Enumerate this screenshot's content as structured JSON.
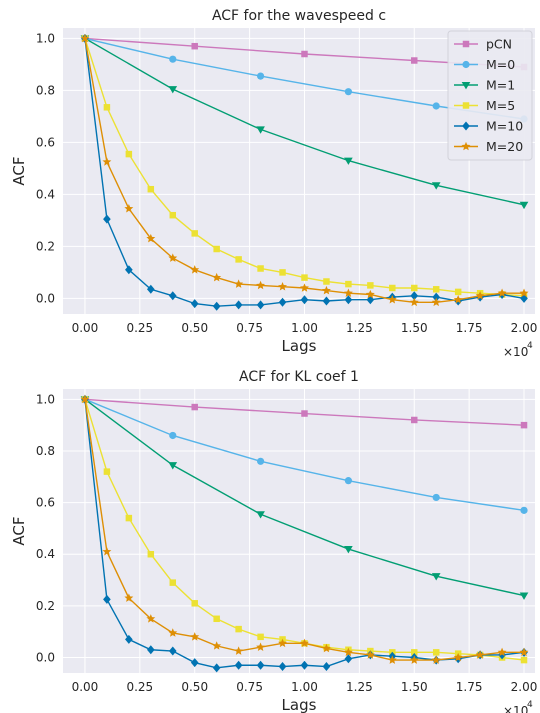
{
  "chart_data": [
    {
      "type": "line",
      "title": "ACF for the wavespeed c",
      "xlabel": "Lags",
      "ylabel": "ACF",
      "x_multiplier_label": "×10",
      "x_multiplier_exp": "4",
      "xlim": [
        -0.1,
        2.05
      ],
      "ylim": [
        -0.06,
        1.04
      ],
      "xticks": [
        0.0,
        0.25,
        0.5,
        0.75,
        1.0,
        1.25,
        1.5,
        1.75,
        2.0
      ],
      "xtick_labels": [
        "0.00",
        "0.25",
        "0.50",
        "0.75",
        "1.00",
        "1.25",
        "1.50",
        "1.75",
        "2.00"
      ],
      "yticks": [
        0.0,
        0.2,
        0.4,
        0.6,
        0.8,
        1.0
      ],
      "ytick_labels": [
        "0.0",
        "0.2",
        "0.4",
        "0.6",
        "0.8",
        "1.0"
      ],
      "grid": true,
      "legend_position": "top-right",
      "series": [
        {
          "name": "pCN",
          "color": "#cc78bc",
          "marker": "square",
          "x": [
            0,
            0.5,
            1.0,
            1.5,
            2.0
          ],
          "y": [
            1.0,
            0.97,
            0.94,
            0.915,
            0.89
          ]
        },
        {
          "name": "M=0",
          "color": "#56b4e9",
          "marker": "circle",
          "x": [
            0,
            0.4,
            0.8,
            1.2,
            1.6,
            2.0
          ],
          "y": [
            1.0,
            0.92,
            0.855,
            0.795,
            0.74,
            0.69
          ]
        },
        {
          "name": "M=1",
          "color": "#029e73",
          "marker": "triangle-down",
          "x": [
            0,
            0.4,
            0.8,
            1.2,
            1.6,
            2.0
          ],
          "y": [
            1.0,
            0.805,
            0.65,
            0.53,
            0.435,
            0.36
          ]
        },
        {
          "name": "M=5",
          "color": "#ece133",
          "marker": "square",
          "x": [
            0,
            0.1,
            0.2,
            0.3,
            0.4,
            0.5,
            0.6,
            0.7,
            0.8,
            0.9,
            1.0,
            1.1,
            1.2,
            1.3,
            1.4,
            1.5,
            1.6,
            1.7,
            1.8,
            1.9,
            2.0
          ],
          "y": [
            1.0,
            0.735,
            0.555,
            0.42,
            0.32,
            0.25,
            0.19,
            0.15,
            0.115,
            0.1,
            0.08,
            0.065,
            0.055,
            0.05,
            0.04,
            0.04,
            0.035,
            0.025,
            0.02,
            0.015,
            0.01
          ]
        },
        {
          "name": "M=10",
          "color": "#0173b2",
          "marker": "diamond",
          "x": [
            0,
            0.1,
            0.2,
            0.3,
            0.4,
            0.5,
            0.6,
            0.7,
            0.8,
            0.9,
            1.0,
            1.1,
            1.2,
            1.3,
            1.4,
            1.5,
            1.6,
            1.7,
            1.8,
            1.9,
            2.0
          ],
          "y": [
            1.0,
            0.305,
            0.11,
            0.035,
            0.01,
            -0.02,
            -0.03,
            -0.025,
            -0.025,
            -0.015,
            -0.005,
            -0.01,
            -0.005,
            -0.005,
            0.005,
            0.01,
            0.005,
            -0.01,
            0.005,
            0.015,
            0.0
          ]
        },
        {
          "name": "M=20",
          "color": "#de8f05",
          "marker": "star",
          "x": [
            0,
            0.1,
            0.2,
            0.3,
            0.4,
            0.5,
            0.6,
            0.7,
            0.8,
            0.9,
            1.0,
            1.1,
            1.2,
            1.3,
            1.4,
            1.5,
            1.6,
            1.7,
            1.8,
            1.9,
            2.0
          ],
          "y": [
            1.0,
            0.525,
            0.345,
            0.23,
            0.155,
            0.11,
            0.08,
            0.055,
            0.05,
            0.045,
            0.04,
            0.03,
            0.02,
            0.015,
            -0.005,
            -0.015,
            -0.015,
            -0.005,
            0.01,
            0.02,
            0.02
          ]
        }
      ]
    },
    {
      "type": "line",
      "title": "ACF for KL coef 1",
      "xlabel": "Lags",
      "ylabel": "ACF",
      "x_multiplier_label": "×10",
      "x_multiplier_exp": "4",
      "xlim": [
        -0.1,
        2.05
      ],
      "ylim": [
        -0.06,
        1.04
      ],
      "xticks": [
        0.0,
        0.25,
        0.5,
        0.75,
        1.0,
        1.25,
        1.5,
        1.75,
        2.0
      ],
      "xtick_labels": [
        "0.00",
        "0.25",
        "0.50",
        "0.75",
        "1.00",
        "1.25",
        "1.50",
        "1.75",
        "2.00"
      ],
      "yticks": [
        0.0,
        0.2,
        0.4,
        0.6,
        0.8,
        1.0
      ],
      "ytick_labels": [
        "0.0",
        "0.2",
        "0.4",
        "0.6",
        "0.8",
        "1.0"
      ],
      "grid": true,
      "legend_position": "none",
      "series": [
        {
          "name": "pCN",
          "color": "#cc78bc",
          "marker": "square",
          "x": [
            0,
            0.5,
            1.0,
            1.5,
            2.0
          ],
          "y": [
            1.0,
            0.97,
            0.945,
            0.92,
            0.9
          ]
        },
        {
          "name": "M=0",
          "color": "#56b4e9",
          "marker": "circle",
          "x": [
            0,
            0.4,
            0.8,
            1.2,
            1.6,
            2.0
          ],
          "y": [
            1.0,
            0.86,
            0.76,
            0.685,
            0.62,
            0.57
          ]
        },
        {
          "name": "M=1",
          "color": "#029e73",
          "marker": "triangle-down",
          "x": [
            0,
            0.4,
            0.8,
            1.2,
            1.6,
            2.0
          ],
          "y": [
            1.0,
            0.745,
            0.555,
            0.42,
            0.315,
            0.24
          ]
        },
        {
          "name": "M=5",
          "color": "#ece133",
          "marker": "square",
          "x": [
            0,
            0.1,
            0.2,
            0.3,
            0.4,
            0.5,
            0.6,
            0.7,
            0.8,
            0.9,
            1.0,
            1.1,
            1.2,
            1.3,
            1.4,
            1.5,
            1.6,
            1.7,
            1.8,
            1.9,
            2.0
          ],
          "y": [
            1.0,
            0.72,
            0.54,
            0.4,
            0.29,
            0.21,
            0.15,
            0.11,
            0.08,
            0.07,
            0.055,
            0.04,
            0.03,
            0.025,
            0.02,
            0.02,
            0.02,
            0.015,
            0.01,
            0.0,
            -0.01
          ]
        },
        {
          "name": "M=10",
          "color": "#0173b2",
          "marker": "diamond",
          "x": [
            0,
            0.1,
            0.2,
            0.3,
            0.4,
            0.5,
            0.6,
            0.7,
            0.8,
            0.9,
            1.0,
            1.1,
            1.2,
            1.3,
            1.4,
            1.5,
            1.6,
            1.7,
            1.8,
            1.9,
            2.0
          ],
          "y": [
            1.0,
            0.225,
            0.07,
            0.03,
            0.025,
            -0.02,
            -0.04,
            -0.03,
            -0.03,
            -0.035,
            -0.03,
            -0.035,
            -0.005,
            0.01,
            0.005,
            0.0,
            -0.01,
            -0.005,
            0.01,
            0.01,
            0.02
          ]
        },
        {
          "name": "M=20",
          "color": "#de8f05",
          "marker": "star",
          "x": [
            0,
            0.1,
            0.2,
            0.3,
            0.4,
            0.5,
            0.6,
            0.7,
            0.8,
            0.9,
            1.0,
            1.1,
            1.2,
            1.3,
            1.4,
            1.5,
            1.6,
            1.7,
            1.8,
            1.9,
            2.0
          ],
          "y": [
            1.0,
            0.41,
            0.23,
            0.15,
            0.095,
            0.08,
            0.045,
            0.025,
            0.04,
            0.055,
            0.055,
            0.035,
            0.02,
            0.01,
            -0.01,
            -0.01,
            -0.01,
            0.0,
            0.01,
            0.02,
            0.02
          ]
        }
      ]
    }
  ]
}
